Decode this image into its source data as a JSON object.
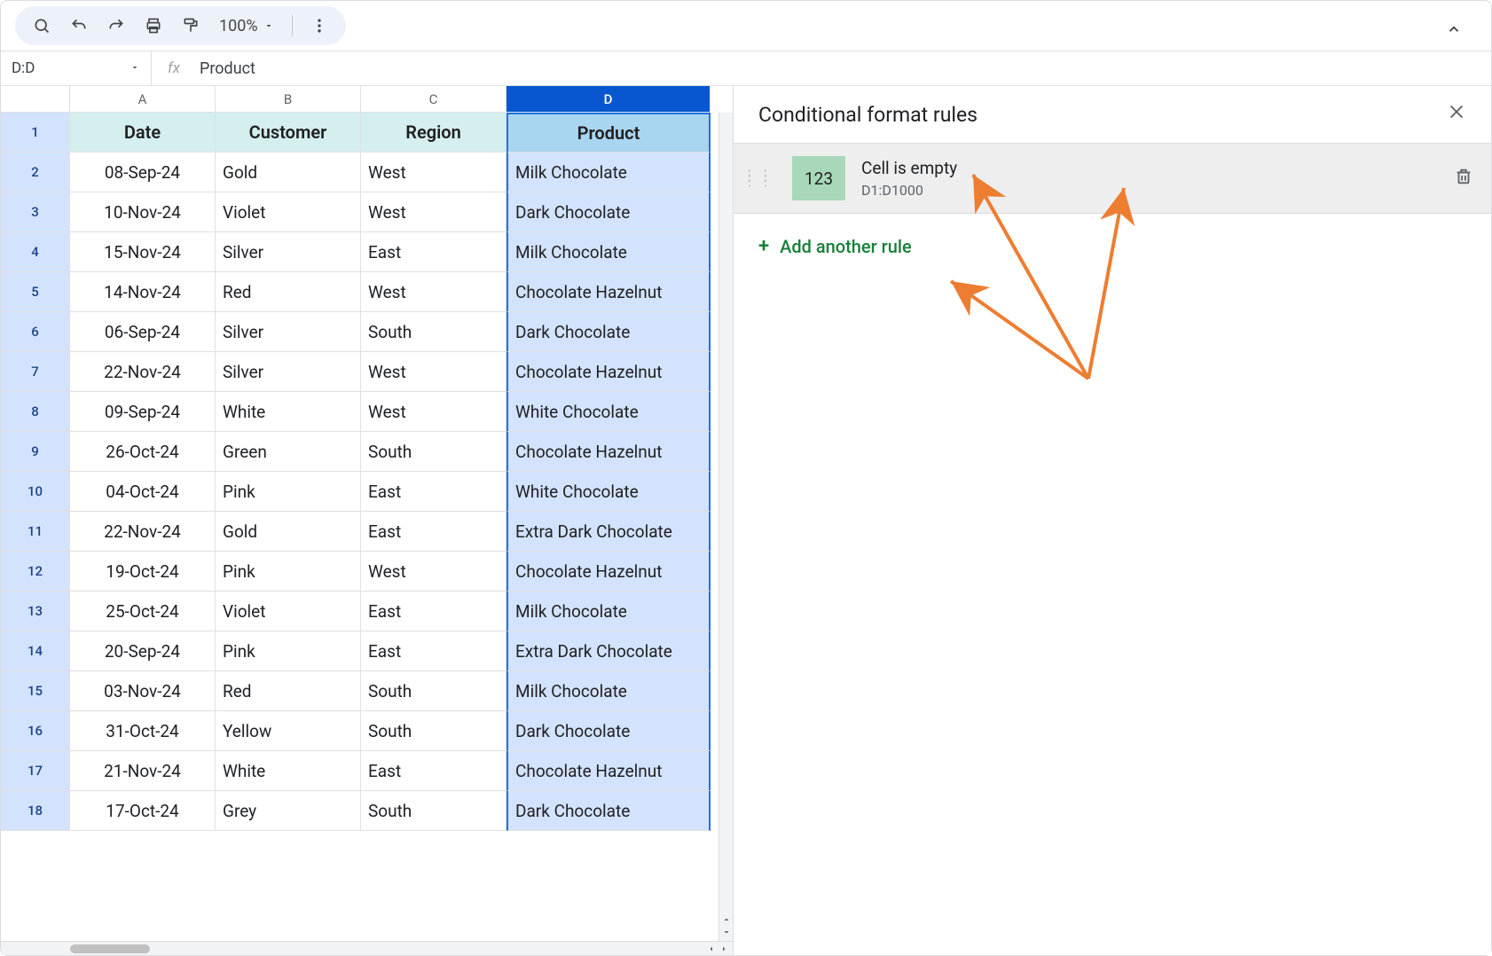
{
  "toolbar": {
    "zoom": "100%"
  },
  "namebox": {
    "value": "D:D"
  },
  "formula": {
    "fx": "fx",
    "value": "Product"
  },
  "columns": [
    "A",
    "B",
    "C",
    "D"
  ],
  "selected_column": "D",
  "headers": [
    "Date",
    "Customer",
    "Region",
    "Product"
  ],
  "rows": [
    {
      "n": "1"
    },
    {
      "n": "2",
      "date": "08-Sep-24",
      "cust": "Gold",
      "reg": "West",
      "prod": "Milk Chocolate"
    },
    {
      "n": "3",
      "date": "10-Nov-24",
      "cust": "Violet",
      "reg": "West",
      "prod": "Dark Chocolate"
    },
    {
      "n": "4",
      "date": "15-Nov-24",
      "cust": "Silver",
      "reg": "East",
      "prod": "Milk Chocolate"
    },
    {
      "n": "5",
      "date": "14-Nov-24",
      "cust": "Red",
      "reg": "West",
      "prod": "Chocolate Hazelnut"
    },
    {
      "n": "6",
      "date": "06-Sep-24",
      "cust": "Silver",
      "reg": "South",
      "prod": "Dark Chocolate"
    },
    {
      "n": "7",
      "date": "22-Nov-24",
      "cust": "Silver",
      "reg": "West",
      "prod": "Chocolate Hazelnut"
    },
    {
      "n": "8",
      "date": "09-Sep-24",
      "cust": "White",
      "reg": "West",
      "prod": "White Chocolate"
    },
    {
      "n": "9",
      "date": "26-Oct-24",
      "cust": "Green",
      "reg": "South",
      "prod": "Chocolate Hazelnut"
    },
    {
      "n": "10",
      "date": "04-Oct-24",
      "cust": "Pink",
      "reg": "East",
      "prod": "White Chocolate"
    },
    {
      "n": "11",
      "date": "22-Nov-24",
      "cust": "Gold",
      "reg": "East",
      "prod": "Extra Dark Chocolate"
    },
    {
      "n": "12",
      "date": "19-Oct-24",
      "cust": "Pink",
      "reg": "West",
      "prod": "Chocolate Hazelnut"
    },
    {
      "n": "13",
      "date": "25-Oct-24",
      "cust": "Violet",
      "reg": "East",
      "prod": "Milk Chocolate"
    },
    {
      "n": "14",
      "date": "20-Sep-24",
      "cust": "Pink",
      "reg": "East",
      "prod": "Extra Dark Chocolate"
    },
    {
      "n": "15",
      "date": "03-Nov-24",
      "cust": "Red",
      "reg": "South",
      "prod": "Milk Chocolate"
    },
    {
      "n": "16",
      "date": "31-Oct-24",
      "cust": "Yellow",
      "reg": "South",
      "prod": "Dark Chocolate"
    },
    {
      "n": "17",
      "date": "21-Nov-24",
      "cust": "White",
      "reg": "East",
      "prod": "Chocolate Hazelnut"
    },
    {
      "n": "18",
      "date": "17-Oct-24",
      "cust": "Grey",
      "reg": "South",
      "prod": "Dark Chocolate"
    }
  ],
  "panel": {
    "title": "Conditional format rules",
    "rule": {
      "swatch_text": "123",
      "swatch_color": "#a8d8b9",
      "title": "Cell is empty",
      "range": "D1:D1000"
    },
    "add_label": "Add another rule"
  },
  "annotation": {
    "arrow_color": "#ed7d31"
  }
}
